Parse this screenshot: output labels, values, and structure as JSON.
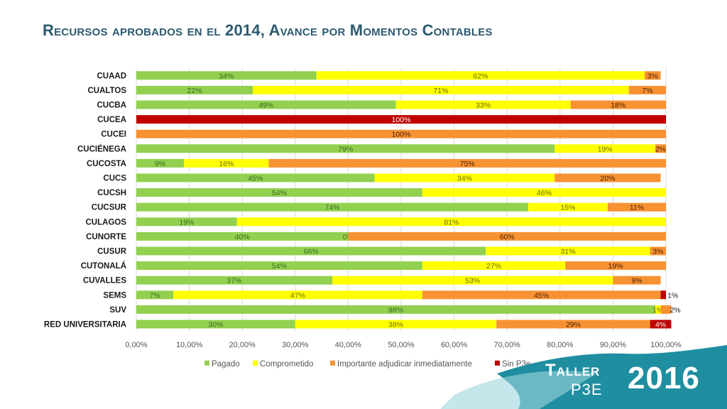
{
  "title": "Recursos aprobados en el 2014, Avance por Momentos Contables",
  "brand": {
    "taller": "Taller",
    "p3e": "P3E",
    "year": "2016"
  },
  "colors": {
    "Pagado": "#92d050",
    "Comprometido": "#ffff00",
    "Importante adjudicar inmediatamente": "#f79233",
    "Sin P3e": "#c00000",
    "teal": "#1f8ea0"
  },
  "chart_data": {
    "type": "bar",
    "orientation": "horizontal",
    "stacked": "percent",
    "categories": [
      "CUAAD",
      "CUALTOS",
      "CUCBA",
      "CUCEA",
      "CUCEI",
      "CUCIÉNEGA",
      "CUCOSTA",
      "CUCS",
      "CUCSH",
      "CUCSUR",
      "CULAGOS",
      "CUNORTE",
      "CUSUR",
      "CUTONALÁ",
      "CUVALLES",
      "SEMS",
      "SUV",
      "RED UNIVERSITARIA"
    ],
    "series": [
      {
        "name": "Pagado",
        "values": [
          34,
          22,
          49,
          0,
          0,
          79,
          9,
          45,
          54,
          74,
          19,
          40,
          66,
          54,
          37,
          7,
          98,
          30
        ],
        "labels": [
          "34%",
          "22%",
          "49%",
          "",
          "",
          "79%",
          "9%",
          "45%",
          "54%",
          "74%",
          "19%",
          "40%",
          "66%",
          "54%",
          "37%",
          "7%",
          "98%",
          "30%"
        ]
      },
      {
        "name": "Comprometido",
        "values": [
          62,
          71,
          33,
          0,
          0,
          19,
          16,
          34,
          46,
          15,
          81,
          0,
          31,
          27,
          53,
          47,
          1,
          38
        ],
        "labels": [
          "62%",
          "71%",
          "33%",
          "",
          "",
          "19%",
          "16%",
          "34%",
          "46%",
          "15%",
          "81%",
          "0%",
          "31%",
          "27%",
          "53%",
          "47%",
          "1%",
          "38%"
        ]
      },
      {
        "name": "Importante adjudicar inmediatamente",
        "values": [
          3,
          7,
          18,
          0,
          100,
          2,
          75,
          20,
          0,
          11,
          0,
          60,
          3,
          19,
          9,
          45,
          2,
          29
        ],
        "labels": [
          "3%",
          "7%",
          "18%",
          "",
          "100%",
          "2%",
          "75%",
          "20%",
          "",
          "11%",
          "",
          "60%",
          "3%",
          "19%",
          "9%",
          "45%",
          "2%",
          "29%"
        ]
      },
      {
        "name": "Sin P3e",
        "values": [
          0,
          0,
          0,
          100,
          0,
          0,
          0,
          0,
          0,
          0,
          0,
          0,
          0,
          0,
          0,
          1,
          0,
          4
        ],
        "labels": [
          "",
          "",
          "",
          "100%",
          "",
          "",
          "",
          "",
          "",
          "",
          "",
          "",
          "",
          "",
          "",
          "1%",
          "",
          "4%"
        ]
      }
    ],
    "xlim": [
      0,
      100
    ],
    "xticks": [
      "0,00%",
      "10,00%",
      "20,00%",
      "30,00%",
      "40,00%",
      "50,00%",
      "60,00%",
      "70,00%",
      "80,00%",
      "90,00%",
      "100,00%"
    ],
    "legend_position": "bottom",
    "grid": true
  }
}
